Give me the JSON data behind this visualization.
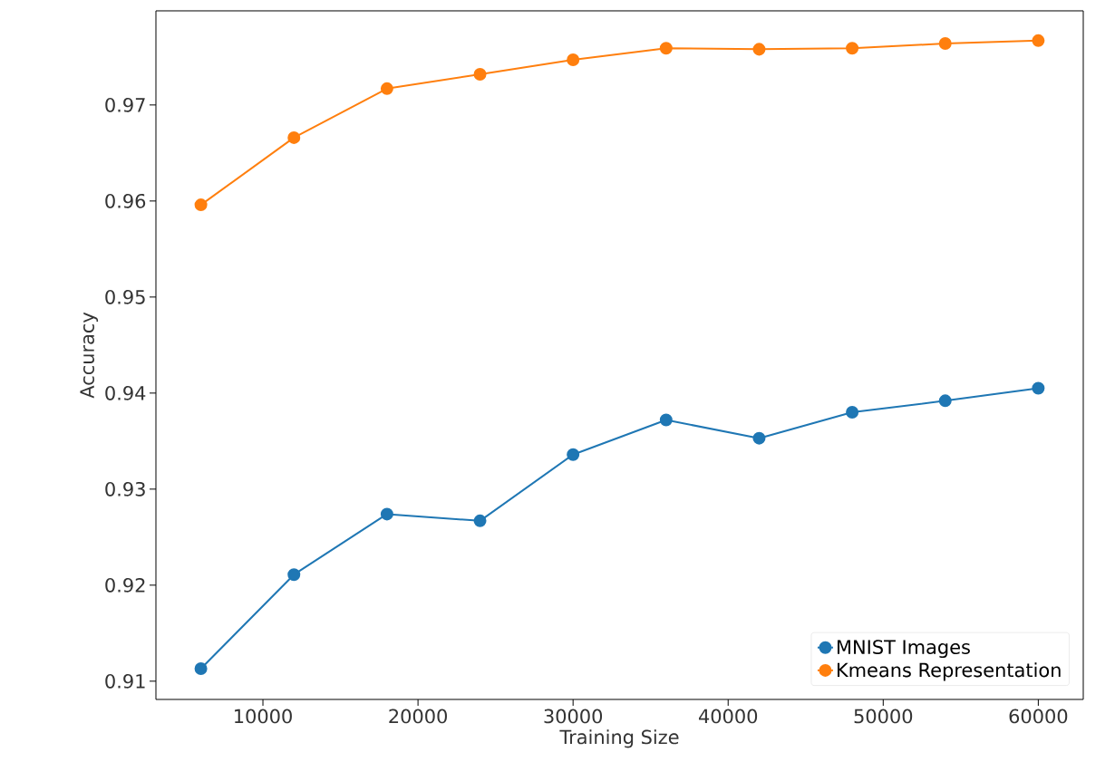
{
  "chart_data": {
    "type": "line",
    "xlabel": "Training Size",
    "ylabel": "Accuracy",
    "x": [
      6000,
      12000,
      18000,
      24000,
      30000,
      36000,
      42000,
      48000,
      54000,
      60000
    ],
    "series": [
      {
        "name": "MNIST Images",
        "color": "#1f77b4",
        "values": [
          0.9113,
          0.9211,
          0.9274,
          0.9267,
          0.9336,
          0.9372,
          0.9353,
          0.938,
          0.9392,
          0.9405
        ]
      },
      {
        "name": "Kmeans Representation",
        "color": "#ff7f0e",
        "values": [
          0.9596,
          0.9666,
          0.9717,
          0.9732,
          0.9747,
          0.9759,
          0.9758,
          0.9759,
          0.9764,
          0.9767
        ]
      }
    ],
    "xlim": [
      3100,
      62900
    ],
    "ylim": [
      0.9081,
      0.9798
    ],
    "xticks": [
      10000,
      20000,
      30000,
      40000,
      50000,
      60000
    ],
    "yticks": [
      0.91,
      0.92,
      0.93,
      0.94,
      0.95,
      0.96,
      0.97
    ],
    "legend": "bottom right",
    "marker": "circle",
    "line_style": "solid",
    "grid": false
  }
}
